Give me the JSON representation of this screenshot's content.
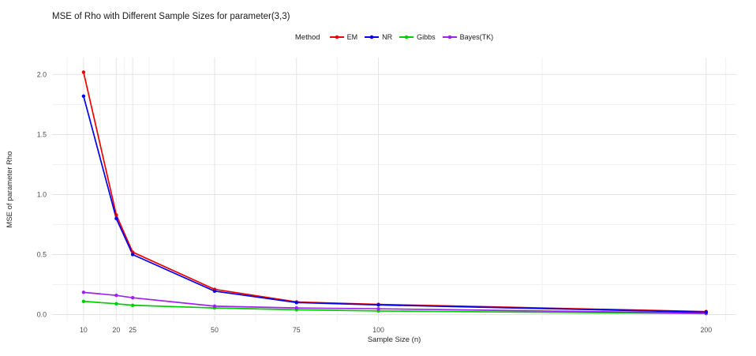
{
  "title": "MSE of Rho with Different Sample Sizes for parameter(3,3)",
  "legend": {
    "title": "Method",
    "entries": [
      "EM",
      "NR",
      "Gibbs",
      "Bayes(TK)"
    ],
    "position": "top-center"
  },
  "colors": {
    "background": "#ffffff",
    "grid_major": "#e4e4e4",
    "grid_minor": "#f1f1f1",
    "title_text": "#1a1a1a",
    "axis_title_text": "#262626",
    "tick_text": "#4d4d4d",
    "em": "#EE0000",
    "nr": "#0000EE",
    "gibbs": "#00CC00",
    "bayes_tk": "#A020F0"
  },
  "chart_data": {
    "type": "line",
    "title": "MSE of Rho with Different Sample Sizes for parameter(3,3)",
    "xlabel": "Sample Size (n)",
    "ylabel": "MSE of parameter Rho",
    "x": [
      10,
      20,
      25,
      50,
      75,
      100,
      200
    ],
    "series": [
      {
        "name": "EM",
        "color": "#EE0000",
        "values": [
          2.02,
          0.83,
          0.52,
          0.21,
          0.105,
          0.085,
          0.025
        ]
      },
      {
        "name": "NR",
        "color": "#0000EE",
        "values": [
          1.82,
          0.8,
          0.5,
          0.195,
          0.1,
          0.08,
          0.02
        ]
      },
      {
        "name": "Gibbs",
        "color": "#00CC00",
        "values": [
          0.11,
          0.09,
          0.077,
          0.055,
          0.04,
          0.03,
          0.008
        ]
      },
      {
        "name": "Bayes(TK)",
        "color": "#A020F0",
        "values": [
          0.185,
          0.16,
          0.14,
          0.07,
          0.055,
          0.048,
          0.012
        ]
      }
    ],
    "xlim": [
      0.4,
      209.2
    ],
    "ylim": [
      -0.056,
      2.141
    ],
    "x_major": [
      10,
      20,
      25,
      50,
      75,
      100,
      200
    ],
    "x_minor": [
      5,
      15,
      22.5,
      30,
      37.5,
      62.5,
      87.5,
      150,
      206
    ],
    "y_major": [
      0,
      0.5,
      1.0,
      1.5,
      2.0
    ],
    "y_minor": [
      0.25,
      0.75,
      1.25,
      1.75
    ],
    "x_tick_labels": [
      "10",
      "20",
      "25",
      "50",
      "75",
      "100",
      "200"
    ],
    "y_tick_labels": [
      "0.0",
      "0.5",
      "1.0",
      "1.5",
      "2.0"
    ],
    "grid": true,
    "legend_position": "top",
    "draw_order": [
      "Gibbs",
      "Bayes(TK)",
      "EM",
      "NR"
    ]
  }
}
